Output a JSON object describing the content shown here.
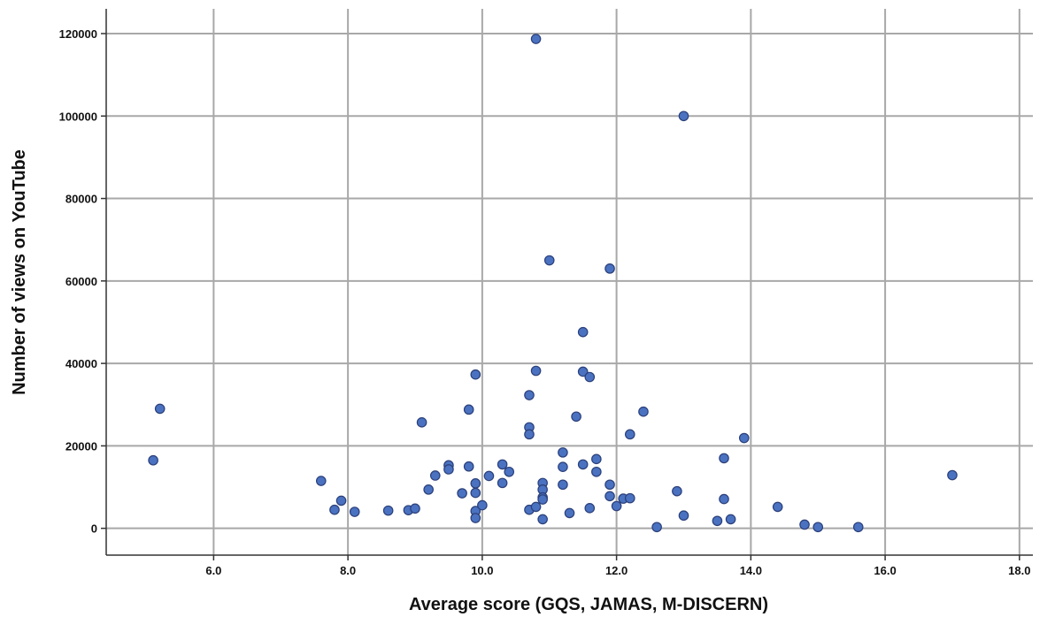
{
  "chart_data": {
    "type": "scatter",
    "xlabel": "Average score (GQS, JAMAS, M-DISCERN)",
    "ylabel": "Number of views on YouTube",
    "xlim": [
      4.4,
      18.2
    ],
    "ylim": [
      -6500,
      126000
    ],
    "xticks": [
      6.0,
      8.0,
      10.0,
      12.0,
      14.0,
      16.0,
      18.0
    ],
    "xtick_labels": [
      "6.0",
      "8.0",
      "10.0",
      "12.0",
      "14.0",
      "16.0",
      "18.0"
    ],
    "yticks": [
      0,
      20000,
      40000,
      60000,
      80000,
      100000,
      120000
    ],
    "ytick_labels": [
      "0",
      "20000",
      "40000",
      "60000",
      "80000",
      "100000",
      "120000"
    ],
    "grid": true,
    "marker_color": "#4a72c0",
    "points": [
      {
        "x": 5.1,
        "y": 16500
      },
      {
        "x": 5.2,
        "y": 29000
      },
      {
        "x": 7.6,
        "y": 11500
      },
      {
        "x": 7.8,
        "y": 4500
      },
      {
        "x": 7.9,
        "y": 6700
      },
      {
        "x": 8.1,
        "y": 4000
      },
      {
        "x": 8.6,
        "y": 4300
      },
      {
        "x": 8.9,
        "y": 4400
      },
      {
        "x": 9.0,
        "y": 4800
      },
      {
        "x": 9.1,
        "y": 25700
      },
      {
        "x": 9.2,
        "y": 9400
      },
      {
        "x": 9.3,
        "y": 12800
      },
      {
        "x": 9.5,
        "y": 15300
      },
      {
        "x": 9.5,
        "y": 14300
      },
      {
        "x": 9.7,
        "y": 8500
      },
      {
        "x": 9.8,
        "y": 28800
      },
      {
        "x": 9.8,
        "y": 15000
      },
      {
        "x": 9.9,
        "y": 37300
      },
      {
        "x": 9.9,
        "y": 10900
      },
      {
        "x": 9.9,
        "y": 8600
      },
      {
        "x": 9.9,
        "y": 4200
      },
      {
        "x": 9.9,
        "y": 2500
      },
      {
        "x": 10.0,
        "y": 5600
      },
      {
        "x": 10.1,
        "y": 12700
      },
      {
        "x": 10.3,
        "y": 15500
      },
      {
        "x": 10.3,
        "y": 11000
      },
      {
        "x": 10.4,
        "y": 13700
      },
      {
        "x": 10.7,
        "y": 32300
      },
      {
        "x": 10.7,
        "y": 24500
      },
      {
        "x": 10.7,
        "y": 22800
      },
      {
        "x": 10.7,
        "y": 4500
      },
      {
        "x": 10.8,
        "y": 118700
      },
      {
        "x": 10.8,
        "y": 38200
      },
      {
        "x": 10.8,
        "y": 5200
      },
      {
        "x": 10.9,
        "y": 11000
      },
      {
        "x": 10.9,
        "y": 9400
      },
      {
        "x": 10.9,
        "y": 7500
      },
      {
        "x": 10.9,
        "y": 7000
      },
      {
        "x": 10.9,
        "y": 2200
      },
      {
        "x": 11.0,
        "y": 65000
      },
      {
        "x": 11.2,
        "y": 18400
      },
      {
        "x": 11.2,
        "y": 14900
      },
      {
        "x": 11.2,
        "y": 10600
      },
      {
        "x": 11.3,
        "y": 3700
      },
      {
        "x": 11.4,
        "y": 27100
      },
      {
        "x": 11.5,
        "y": 47600
      },
      {
        "x": 11.5,
        "y": 38000
      },
      {
        "x": 11.5,
        "y": 15500
      },
      {
        "x": 11.6,
        "y": 36700
      },
      {
        "x": 11.6,
        "y": 4900
      },
      {
        "x": 11.7,
        "y": 16800
      },
      {
        "x": 11.7,
        "y": 13700
      },
      {
        "x": 11.9,
        "y": 63000
      },
      {
        "x": 11.9,
        "y": 10600
      },
      {
        "x": 11.9,
        "y": 7800
      },
      {
        "x": 12.0,
        "y": 5400
      },
      {
        "x": 12.1,
        "y": 7200
      },
      {
        "x": 12.2,
        "y": 22800
      },
      {
        "x": 12.2,
        "y": 7300
      },
      {
        "x": 12.4,
        "y": 28300
      },
      {
        "x": 12.6,
        "y": 300
      },
      {
        "x": 12.9,
        "y": 9000
      },
      {
        "x": 13.0,
        "y": 100000
      },
      {
        "x": 13.0,
        "y": 3100
      },
      {
        "x": 13.5,
        "y": 1800
      },
      {
        "x": 13.6,
        "y": 17000
      },
      {
        "x": 13.6,
        "y": 7100
      },
      {
        "x": 13.7,
        "y": 2200
      },
      {
        "x": 13.9,
        "y": 21900
      },
      {
        "x": 14.4,
        "y": 5200
      },
      {
        "x": 14.8,
        "y": 900
      },
      {
        "x": 15.0,
        "y": 300
      },
      {
        "x": 15.6,
        "y": 300
      },
      {
        "x": 17.0,
        "y": 12900
      }
    ]
  }
}
